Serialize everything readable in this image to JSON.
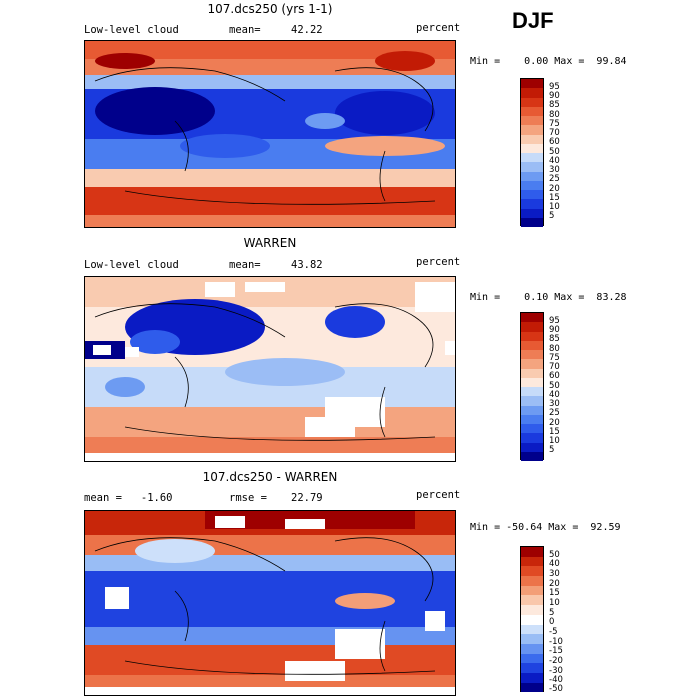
{
  "season": "DJF",
  "colors": {
    "cloud": [
      "#00008b",
      "#0a1bc4",
      "#1a3ade",
      "#2f5ceb",
      "#4a7df0",
      "#6d9bf2",
      "#9bbdf5",
      "#c6dbf9",
      "#ffffff",
      "#fde9dd",
      "#f9cbb0",
      "#f4a47f",
      "#ee7d55",
      "#e75a33",
      "#d73515",
      "#c21b05",
      "#9e0000"
    ],
    "diff": [
      "#00008b",
      "#0a1bc4",
      "#1f43e0",
      "#3b6bed",
      "#6693f1",
      "#99bdf5",
      "#cde0fa",
      "#ffffff",
      "#fde9dd",
      "#f9c7ab",
      "#f39e77",
      "#ec7349",
      "#e04a24",
      "#c8260a",
      "#9e0000"
    ]
  },
  "panels": [
    {
      "title": "107.dcs250 (yrs 1-1)",
      "left_label": "Low-level cloud",
      "stat_label": "mean=",
      "stat_value": "42.22",
      "units": "percent",
      "min_max": "Min =    0.00 Max =  99.84",
      "colorbar_labels": [
        "95",
        "90",
        "85",
        "80",
        "75",
        "70",
        "60",
        "50",
        "40",
        "30",
        "25",
        "20",
        "15",
        "10",
        "5"
      ]
    },
    {
      "title": "WARREN",
      "left_label": "Low-level cloud",
      "stat_label": "mean=",
      "stat_value": "43.82",
      "units": "percent",
      "min_max": "Min =    0.10 Max =  83.28",
      "colorbar_labels": [
        "95",
        "90",
        "85",
        "80",
        "75",
        "70",
        "60",
        "50",
        "40",
        "30",
        "25",
        "20",
        "15",
        "10",
        "5"
      ]
    },
    {
      "title": "107.dcs250 - WARREN",
      "left_label": "mean =   -1.60",
      "stat_label": "rmse =",
      "stat_value": "22.79",
      "units": "percent",
      "min_max": "Min = -50.64 Max =  92.59",
      "colorbar_labels": [
        "50",
        "40",
        "30",
        "20",
        "15",
        "10",
        "5",
        "0",
        "-5",
        "-10",
        "-15",
        "-20",
        "-30",
        "-40",
        "-50"
      ]
    }
  ]
}
